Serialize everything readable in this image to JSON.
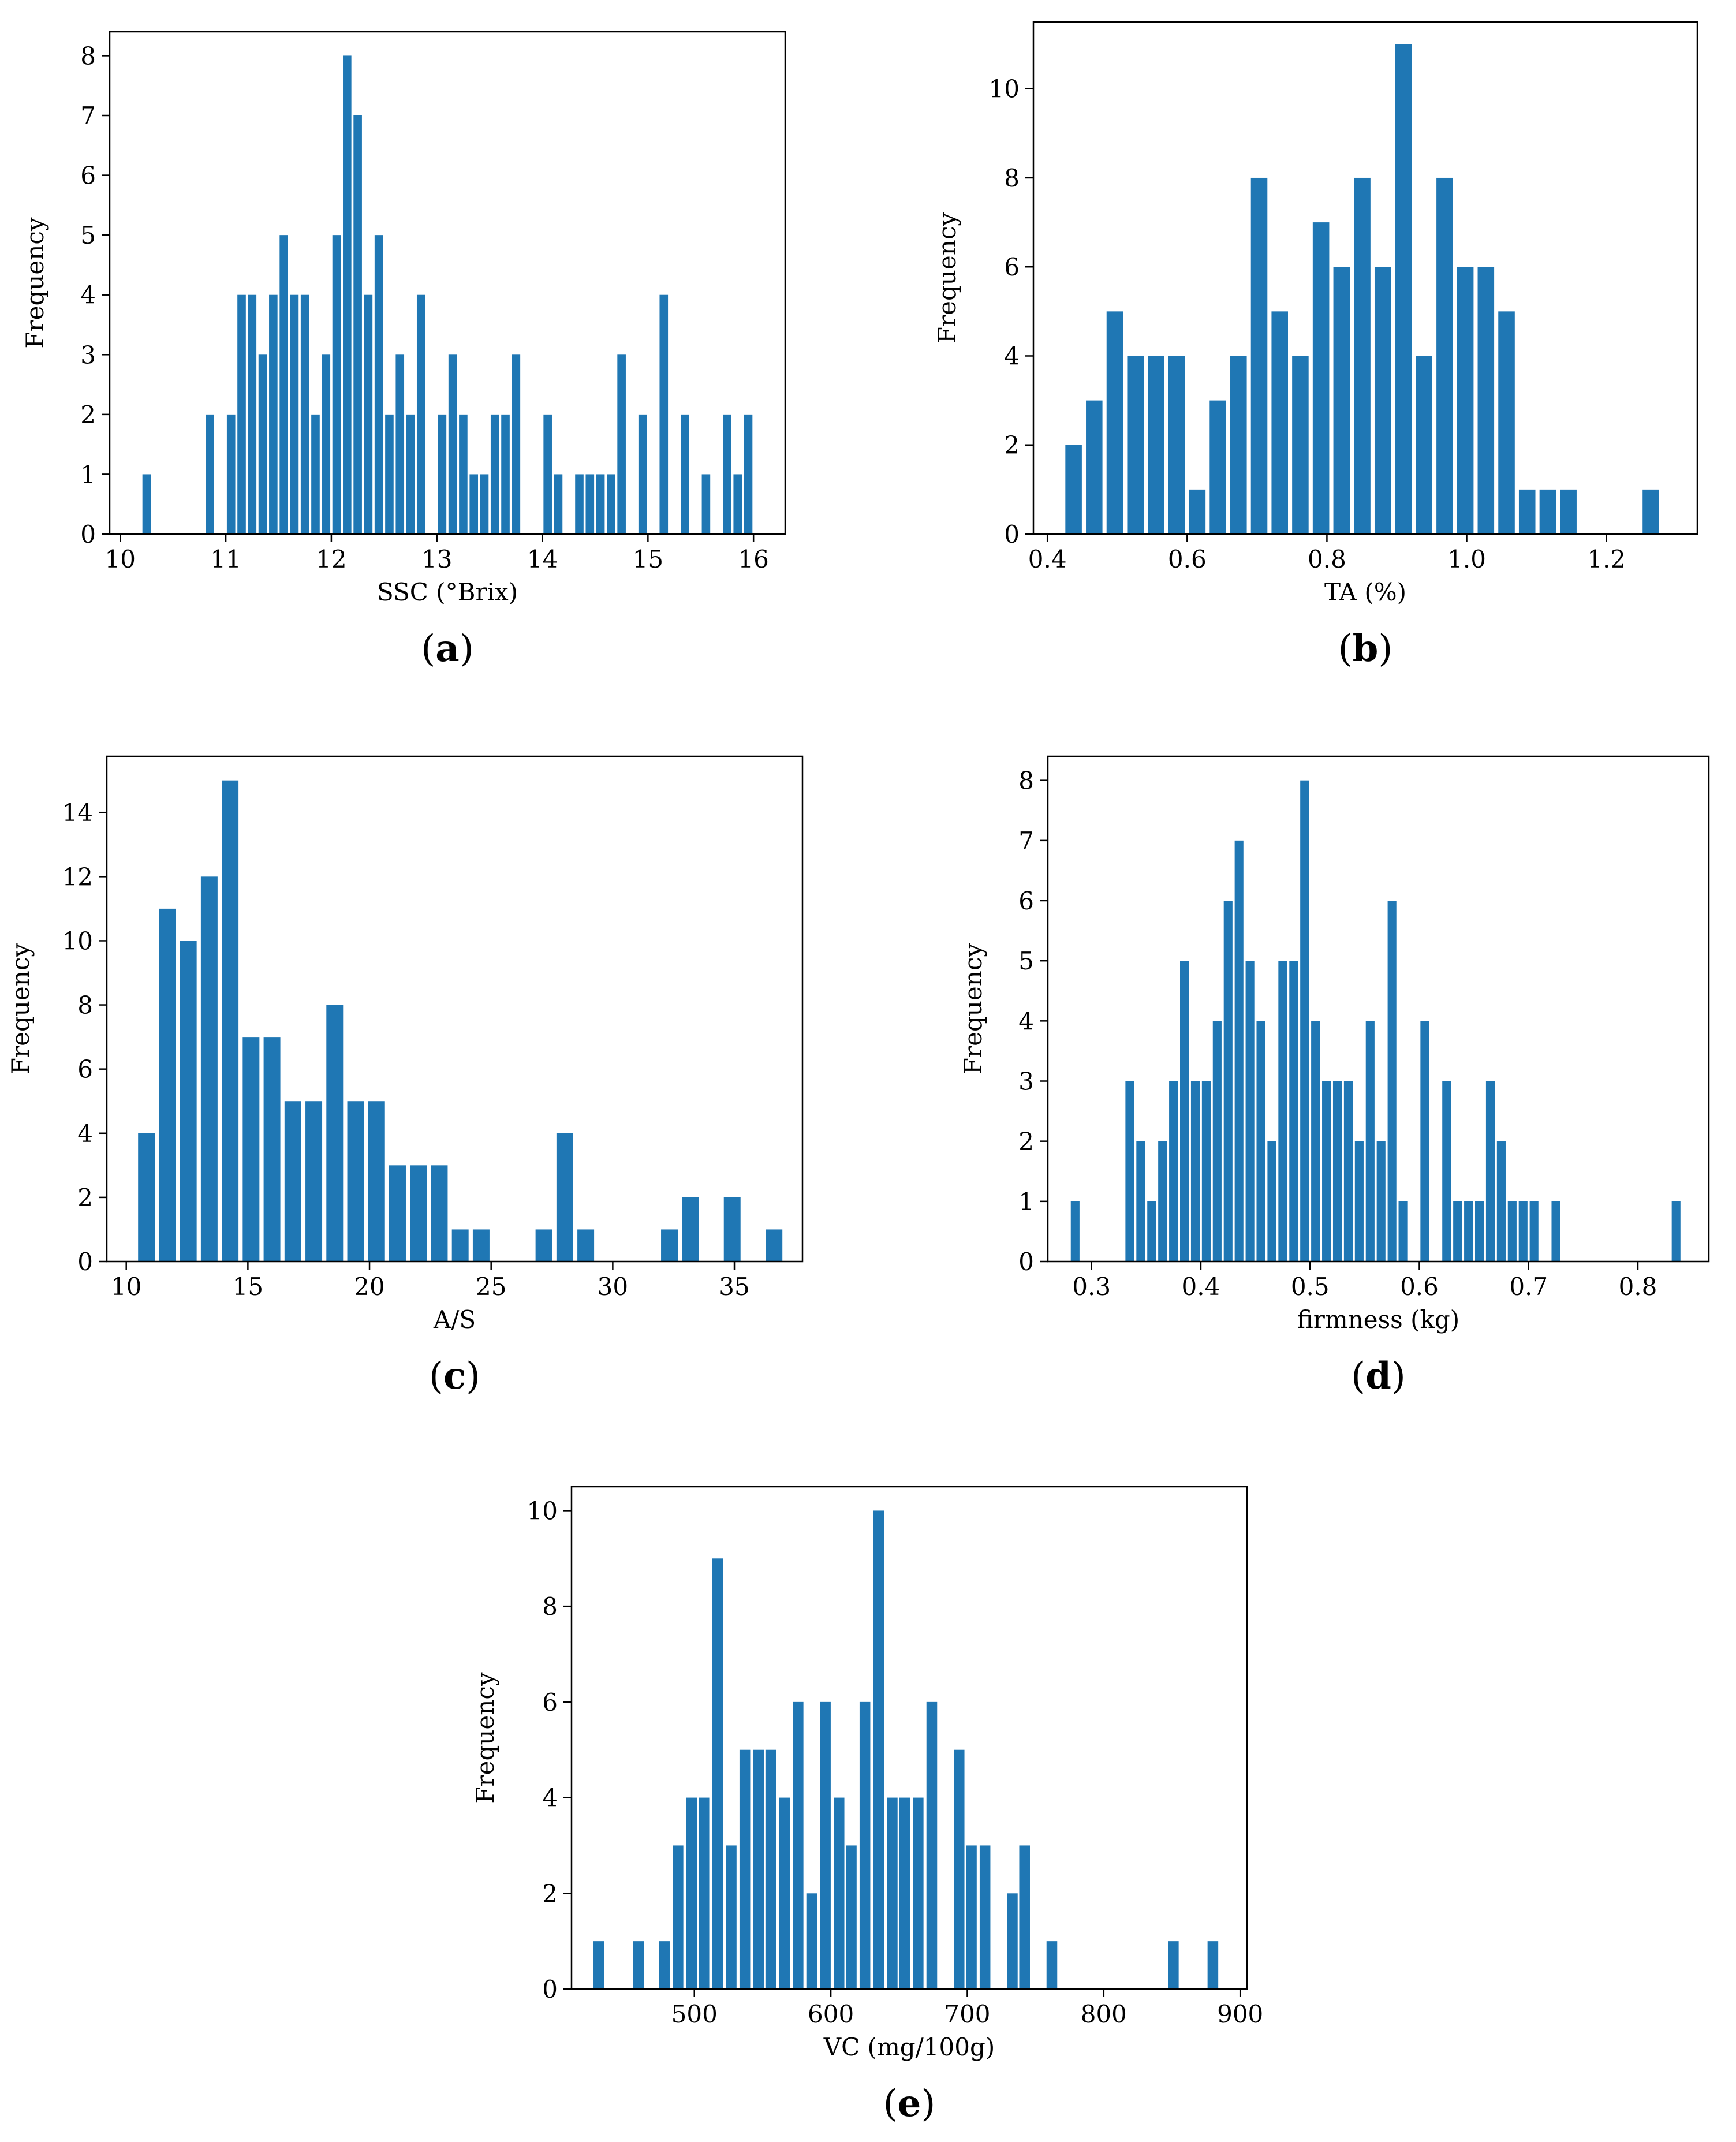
{
  "figure": {
    "title": ""
  },
  "chart_data": [
    {
      "id": "a",
      "label": "a",
      "type": "bar",
      "xlabel": "SSC (°Brix)",
      "ylabel": "Frequency",
      "xlim": [
        9.9,
        16.3
      ],
      "ylim": [
        0,
        8.4
      ],
      "xticks": [
        10,
        11,
        12,
        13,
        14,
        15,
        16
      ],
      "yticks": [
        0,
        1,
        2,
        3,
        4,
        5,
        6,
        7,
        8
      ],
      "bin_width": 0.1,
      "x": [
        10.25,
        10.85,
        11.05,
        11.15,
        11.25,
        11.35,
        11.45,
        11.55,
        11.65,
        11.75,
        11.85,
        11.95,
        12.05,
        12.15,
        12.25,
        12.35,
        12.45,
        12.55,
        12.65,
        12.75,
        12.85,
        13.05,
        13.15,
        13.25,
        13.35,
        13.45,
        13.55,
        13.65,
        13.75,
        14.05,
        14.15,
        14.35,
        14.45,
        14.55,
        14.65,
        14.75,
        14.95,
        15.15,
        15.35,
        15.55,
        15.75,
        15.85,
        15.95
      ],
      "values": [
        1,
        2,
        2,
        4,
        4,
        3,
        4,
        5,
        4,
        4,
        2,
        3,
        5,
        8,
        7,
        4,
        5,
        2,
        3,
        2,
        4,
        2,
        3,
        2,
        1,
        1,
        2,
        2,
        3,
        2,
        1,
        1,
        1,
        1,
        1,
        3,
        2,
        4,
        2,
        1,
        2,
        1,
        2
      ]
    },
    {
      "id": "b",
      "label": "b",
      "type": "bar",
      "xlabel": "TA (%)",
      "ylabel": "Frequency",
      "xlim": [
        0.38,
        1.33
      ],
      "ylim": [
        0,
        11.5
      ],
      "xticks": [
        0.4,
        0.6,
        0.8,
        1.0,
        1.2
      ],
      "ytick_labels": [
        "0",
        "2",
        "4",
        "6",
        "8",
        "10"
      ],
      "yticks": [
        0,
        2,
        4,
        6,
        8,
        10
      ],
      "bin_width": 0.0295,
      "x": [
        0.4375,
        0.467,
        0.4965,
        0.526,
        0.5555,
        0.585,
        0.6145,
        0.644,
        0.6735,
        0.703,
        0.7325,
        0.762,
        0.7915,
        0.821,
        0.8505,
        0.88,
        0.9095,
        0.939,
        0.9685,
        0.998,
        1.0275,
        1.057,
        1.0865,
        1.116,
        1.1455,
        1.2635
      ],
      "values": [
        2,
        3,
        5,
        4,
        4,
        4,
        1,
        3,
        4,
        8,
        5,
        4,
        7,
        6,
        8,
        6,
        11,
        4,
        8,
        6,
        6,
        5,
        1,
        1,
        1,
        1
      ]
    },
    {
      "id": "c",
      "label": "c",
      "type": "bar",
      "xlabel": "A/S",
      "ylabel": "Frequency",
      "xlim": [
        9.2,
        37.8
      ],
      "ylim": [
        0,
        15.75
      ],
      "xticks": [
        10,
        15,
        20,
        25,
        30,
        35
      ],
      "yticks": [
        0,
        2,
        4,
        6,
        8,
        10,
        12,
        14
      ],
      "bin_width": 0.86,
      "x": [
        10.83,
        11.69,
        12.55,
        13.41,
        14.27,
        15.13,
        15.99,
        16.85,
        17.71,
        18.57,
        19.43,
        20.29,
        21.15,
        22.01,
        22.87,
        23.73,
        24.59,
        27.17,
        28.03,
        28.89,
        32.33,
        33.19,
        34.91,
        36.63
      ],
      "values": [
        4,
        11,
        10,
        12,
        15,
        7,
        7,
        5,
        5,
        8,
        5,
        5,
        3,
        3,
        3,
        1,
        1,
        1,
        4,
        1,
        1,
        2,
        2,
        1
      ]
    },
    {
      "id": "d",
      "label": "d",
      "type": "bar",
      "xlabel": "firmness (kg)",
      "ylabel": "Frequency",
      "xlim": [
        0.26,
        0.865
      ],
      "ylim": [
        0,
        8.4
      ],
      "xticks": [
        0.3,
        0.4,
        0.5,
        0.6,
        0.7,
        0.8
      ],
      "yticks": [
        0,
        1,
        2,
        3,
        4,
        5,
        6,
        7,
        8
      ],
      "bin_width": 0.01,
      "x": [
        0.285,
        0.335,
        0.345,
        0.355,
        0.365,
        0.375,
        0.385,
        0.395,
        0.405,
        0.415,
        0.425,
        0.435,
        0.445,
        0.455,
        0.465,
        0.475,
        0.485,
        0.495,
        0.505,
        0.515,
        0.525,
        0.535,
        0.545,
        0.555,
        0.565,
        0.575,
        0.585,
        0.605,
        0.625,
        0.635,
        0.645,
        0.655,
        0.665,
        0.675,
        0.685,
        0.695,
        0.705,
        0.725,
        0.835
      ],
      "values": [
        1,
        3,
        2,
        1,
        2,
        3,
        5,
        3,
        3,
        4,
        6,
        7,
        5,
        4,
        2,
        5,
        5,
        8,
        4,
        3,
        3,
        3,
        2,
        4,
        2,
        6,
        1,
        4,
        3,
        1,
        1,
        1,
        3,
        2,
        1,
        1,
        1,
        1,
        1
      ]
    },
    {
      "id": "e",
      "label": "e",
      "type": "bar",
      "xlabel": "VC (mg/100g)",
      "ylabel": "Frequency",
      "xlim": [
        410,
        905
      ],
      "ylim": [
        0,
        10.5
      ],
      "xticks": [
        500,
        600,
        700,
        800,
        900
      ],
      "yticks": [
        0,
        2,
        4,
        6,
        8,
        10
      ],
      "bin_width": 9.8,
      "x": [
        430,
        459,
        478,
        488,
        498,
        507,
        517,
        527,
        537,
        547,
        556,
        566,
        576,
        586,
        596,
        606,
        615,
        625,
        635,
        645,
        654,
        664,
        674,
        694,
        703,
        713,
        733,
        742,
        762,
        851,
        880
      ],
      "values": [
        1,
        1,
        1,
        3,
        4,
        4,
        9,
        3,
        5,
        5,
        5,
        4,
        6,
        2,
        6,
        4,
        3,
        6,
        10,
        4,
        4,
        4,
        6,
        5,
        3,
        3,
        2,
        3,
        1,
        1,
        1
      ]
    }
  ]
}
